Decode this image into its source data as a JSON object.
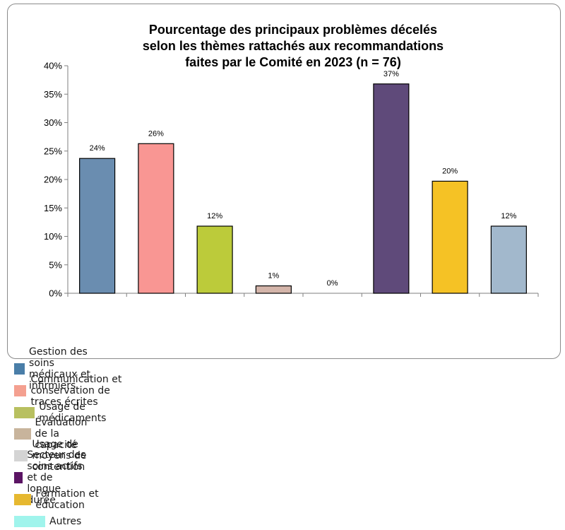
{
  "chart_data": {
    "type": "bar",
    "title": [
      "Pourcentage des principaux problèmes décelés",
      "selon les thèmes rattachés aux recommandations",
      "faites par le Comité en 2023 (n = 76)"
    ],
    "xlabel": "",
    "ylabel": "",
    "ylim": [
      0,
      40
    ],
    "yticks": [
      "0%",
      "5%",
      "10%",
      "15%",
      "20%",
      "25%",
      "30%",
      "35%",
      "40%"
    ],
    "ytick_values": [
      0,
      5,
      10,
      15,
      20,
      25,
      30,
      35,
      40
    ],
    "categories": [
      "Gestion des soins médicaux et infirmiers",
      "Communication et conservation de traces écrites",
      "Usage de médicaments",
      "Évaluation de la capacité",
      "Usage de moyens de contention",
      "Secteur des soins actifs et de longue durée",
      "Formation et éducation",
      "Autres"
    ],
    "values": [
      23.7,
      26.3,
      11.8,
      1.3,
      0,
      36.8,
      19.7,
      11.8
    ],
    "data_labels": [
      "24%",
      "26%",
      "12%",
      "1%",
      "0%",
      "37%",
      "20%",
      "12%"
    ],
    "bar_colors": [
      "#6a8db0",
      "#f99693",
      "#bccb3a",
      "#d4b5aa",
      "#d9d9d9",
      "#5f4a7a",
      "#f5c225",
      "#a2b8cc"
    ],
    "legend_position": "bottom"
  },
  "legend": {
    "items": [
      {
        "label": "Gestion des soins médicaux et infirmiers",
        "color": "#4a7ea8"
      },
      {
        "label": "Communication et conservation de traces écrites",
        "color": "#f4a090"
      },
      {
        "label": "Usage de médicaments",
        "color": "#b8c060"
      },
      {
        "label": "Évaluation de la capacité",
        "color": "#c8b49c"
      },
      {
        "label": "Usage de moyens de contention",
        "color": "#d4d4d4"
      },
      {
        "label": "Secteur des soins actifs et de longue durée",
        "color": "#5b1464"
      },
      {
        "label": "Formation et éducation",
        "color": "#e6b830"
      },
      {
        "label": "Autres",
        "color": "#a0f4ec"
      }
    ]
  }
}
